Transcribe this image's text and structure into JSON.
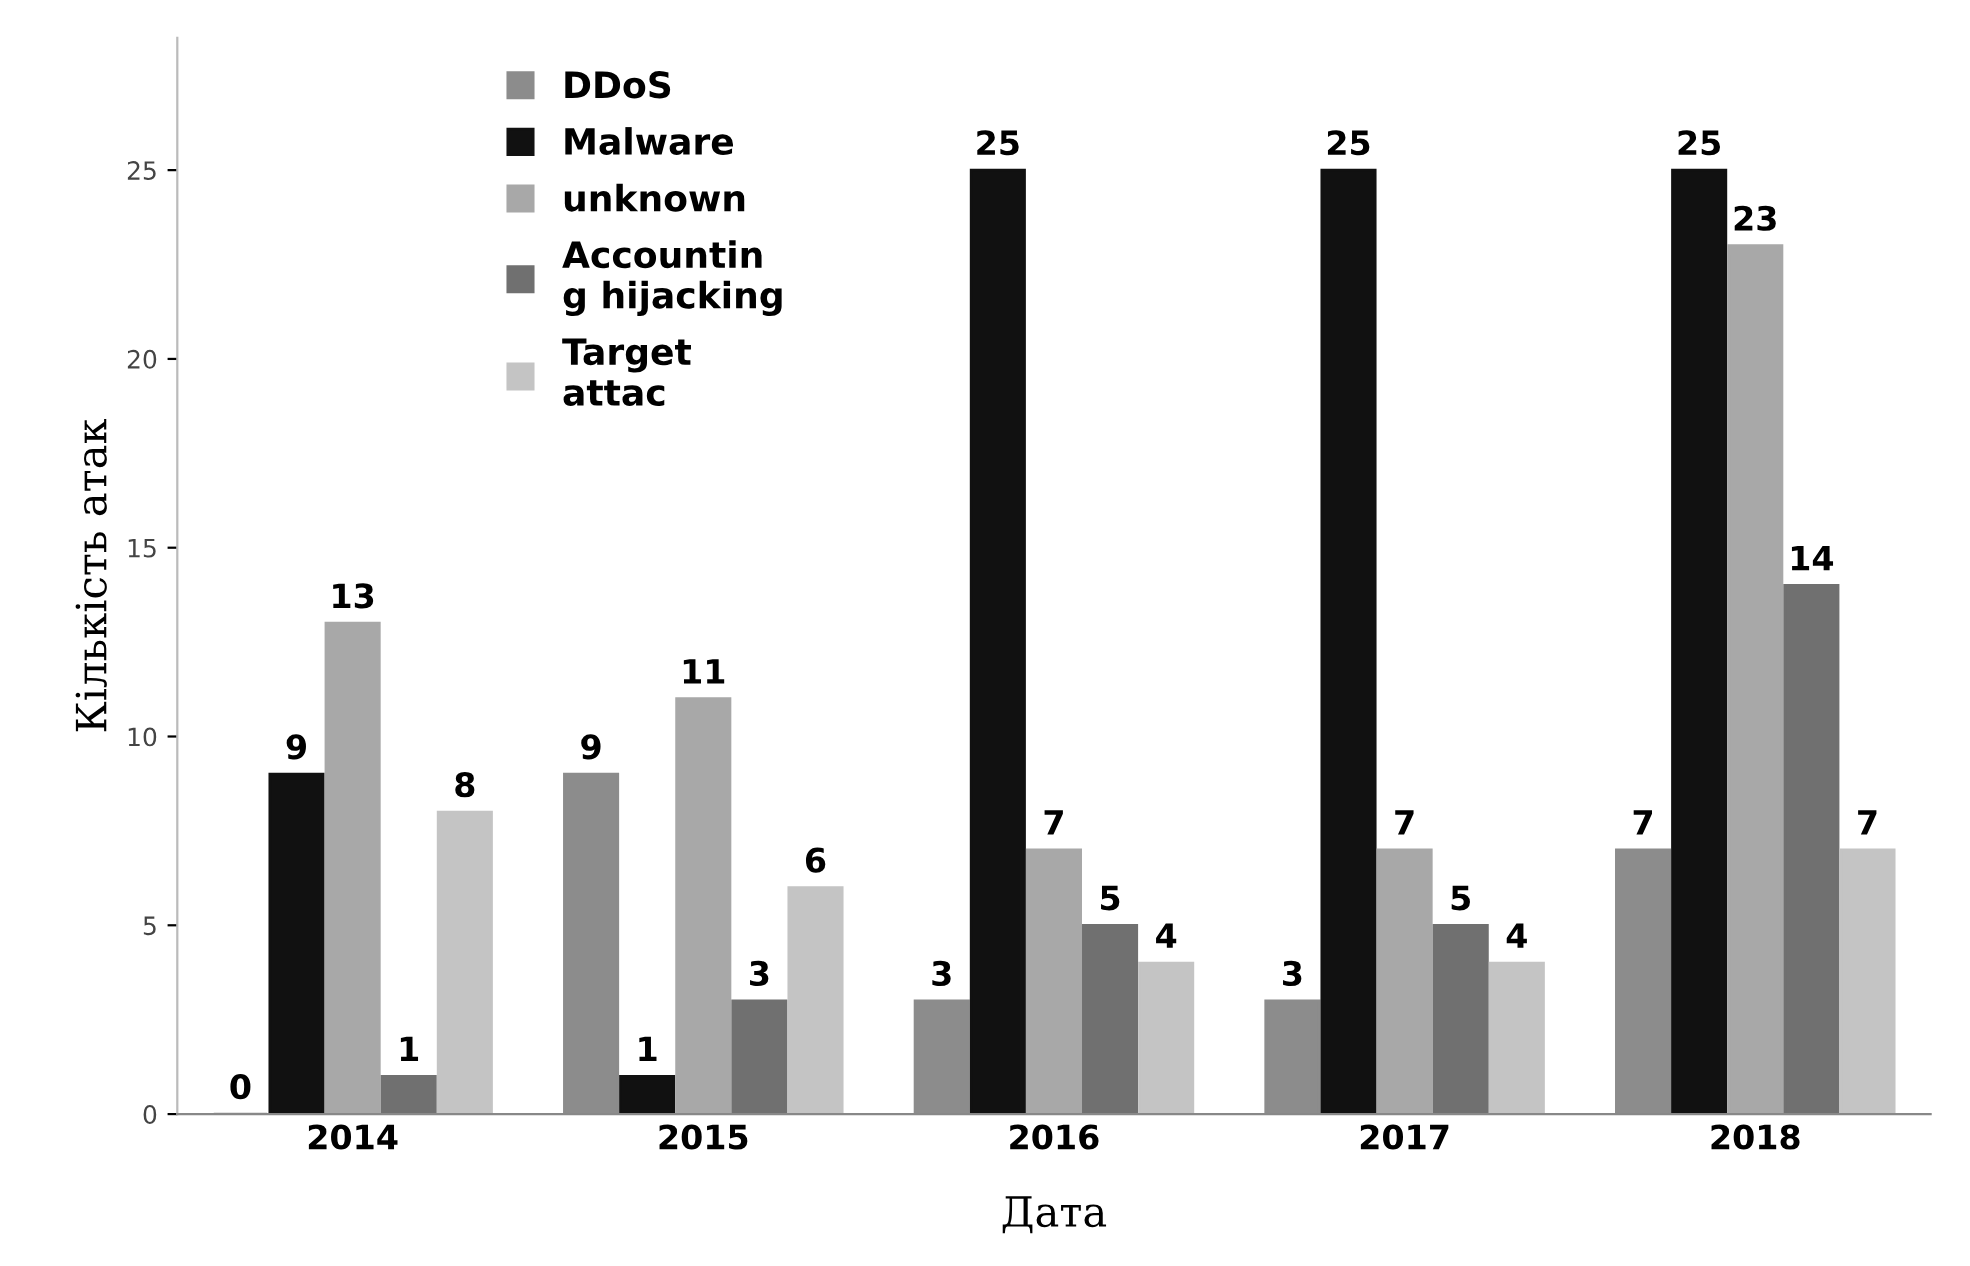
{
  "chart_data": {
    "type": "bar",
    "xlabel": "Дата",
    "ylabel": "Кількість атак",
    "categories": [
      "2014",
      "2015",
      "2016",
      "2017",
      "2018"
    ],
    "series": [
      {
        "name": "DDoS",
        "color": "#8c8c8c",
        "values": [
          0,
          9,
          3,
          3,
          7
        ]
      },
      {
        "name": "Malware",
        "color": "#111111",
        "values": [
          9,
          1,
          25,
          25,
          25
        ]
      },
      {
        "name": "unknown",
        "color": "#a8a8a8",
        "values": [
          13,
          11,
          7,
          7,
          23
        ]
      },
      {
        "name": "Accountin\ng hijacking",
        "color": "#707070",
        "values": [
          1,
          3,
          5,
          5,
          14
        ]
      },
      {
        "name": "Target\nattac",
        "color": "#c4c4c4",
        "values": [
          8,
          6,
          4,
          4,
          7
        ]
      }
    ],
    "ylim": [
      0,
      28.5
    ],
    "yticks": [
      0,
      5,
      10,
      15,
      20,
      25
    ],
    "data_labels": true,
    "grid": false,
    "legend": "top left"
  }
}
